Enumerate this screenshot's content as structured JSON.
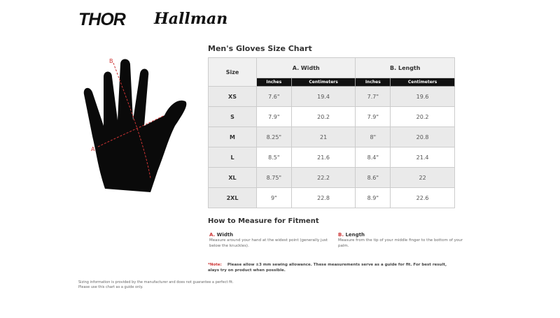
{
  "brand": {
    "logo1": "THOR",
    "logo2": "Hallman"
  },
  "title": "Men's Gloves Size Chart",
  "diagram": {
    "label_a": "A",
    "label_b": "B"
  },
  "table": {
    "size_header": "Size",
    "groups": [
      "A. Width",
      "B. Length"
    ],
    "subheaders": [
      "Inches",
      "Centimeters",
      "Inches",
      "Centimeters"
    ],
    "rows": [
      [
        "XS",
        "7.6\"",
        "19.4",
        "7.7\"",
        "19.6"
      ],
      [
        "S",
        "7.9\"",
        "20.2",
        "7.9\"",
        "20.2"
      ],
      [
        "M",
        "8.25\"",
        "21",
        "8\"",
        "20.8"
      ],
      [
        "L",
        "8.5\"",
        "21.6",
        "8.4\"",
        "21.4"
      ],
      [
        "XL",
        "8.75\"",
        "22.2",
        "8.6\"",
        "22"
      ],
      [
        "2XL",
        "9\"",
        "22.8",
        "8.9\"",
        "22.6"
      ]
    ]
  },
  "howto": {
    "title": "How to Measure for Fitment",
    "width": {
      "letter": "A.",
      "label": "Width",
      "desc": "Measure around your hand at the widest point (generally just below the knuckles)."
    },
    "length": {
      "letter": "B.",
      "label": "Length",
      "desc": "Measure from the tip of your middle finger to the bottom of your palm."
    }
  },
  "note": {
    "label": "*Note:",
    "text": "Please allow ±3 mm sewing allowance. These measurements serve as a guide for fit. For best result, alays try on product when possible."
  },
  "disclaimer": [
    "Sizing information is provided by the manufacturer and does not guarantee a perfect fit.",
    "Please use this chart as a guide only."
  ]
}
